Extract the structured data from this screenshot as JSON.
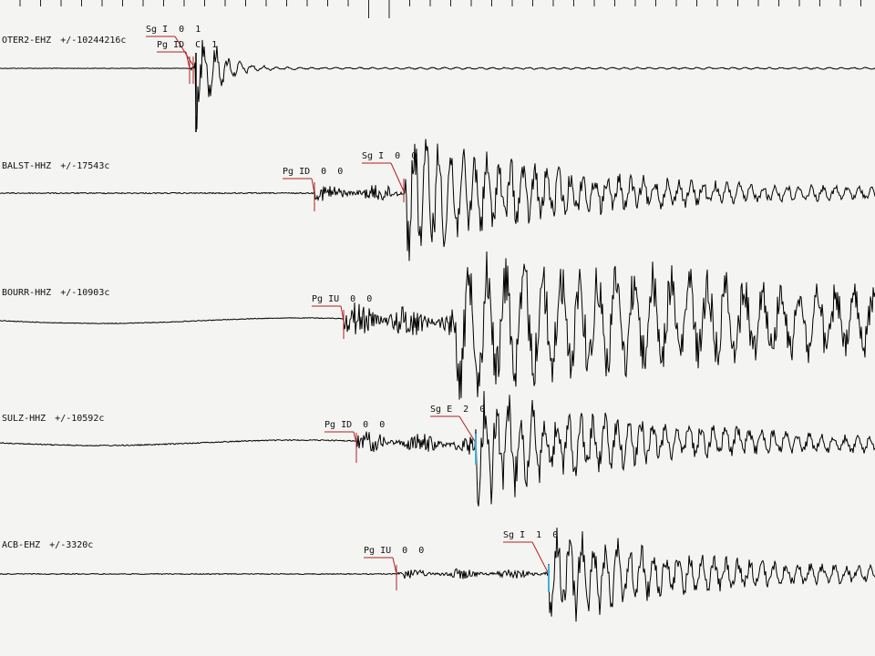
{
  "colors": {
    "background": "#f4f4f2",
    "trace": "#000000",
    "pick_line": "#b02020",
    "pick_marker_cyan": "#3ab0d8"
  },
  "traces": [
    {
      "id": "oter2",
      "station": "OTER2-EHZ",
      "amplitude": "+/-10244216c",
      "picks": [
        {
          "phase": "Sg",
          "quality": "I",
          "w1": "0",
          "w2": "1"
        },
        {
          "phase": "Pg",
          "quality": "ID",
          "w1": "C",
          "w2": "1"
        }
      ]
    },
    {
      "id": "balst",
      "station": "BALST-HHZ",
      "amplitude": "+/-17543c",
      "picks": [
        {
          "phase": "Pg",
          "quality": "ID",
          "w1": "0",
          "w2": "0"
        },
        {
          "phase": "Sg",
          "quality": "I",
          "w1": "0",
          "w2": "0"
        }
      ]
    },
    {
      "id": "bourr",
      "station": "BOURR-HHZ",
      "amplitude": "+/-10903c",
      "picks": [
        {
          "phase": "Pg",
          "quality": "IU",
          "w1": "0",
          "w2": "0"
        }
      ]
    },
    {
      "id": "sulz",
      "station": "SULZ-HHZ",
      "amplitude": "+/-10592c",
      "picks": [
        {
          "phase": "Pg",
          "quality": "ID",
          "w1": "0",
          "w2": "0"
        },
        {
          "phase": "Sg",
          "quality": "E",
          "w1": "2",
          "w2": "0"
        }
      ]
    },
    {
      "id": "acb",
      "station": "ACB-EHZ",
      "amplitude": "+/-3320c",
      "picks": [
        {
          "phase": "Pg",
          "quality": "IU",
          "w1": "0",
          "w2": "0"
        },
        {
          "phase": "Sg",
          "quality": "I",
          "w1": "1",
          "w2": "0"
        }
      ]
    }
  ]
}
